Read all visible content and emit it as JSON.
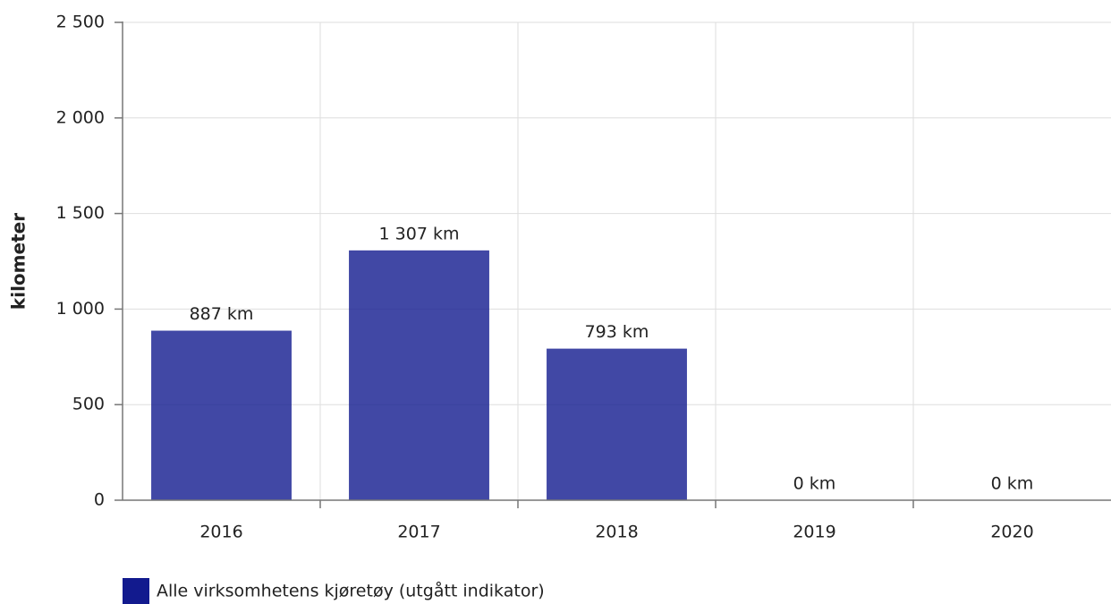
{
  "chart_data": {
    "type": "bar",
    "y_label": "kilometer",
    "categories": [
      "2016",
      "2017",
      "2018",
      "2019",
      "2020"
    ],
    "series": [
      {
        "name": "Alle virksomhetens kjøretøy (utgått indikator)",
        "color": "#121a8e",
        "values": [
          887,
          1307,
          793,
          0,
          0
        ],
        "value_labels": [
          "887 km",
          "1 307 km",
          "793 km",
          "0 km",
          "0 km"
        ]
      }
    ],
    "ylim": [
      0,
      2500
    ],
    "yticks": [
      0,
      500,
      {
        "value": 1000,
        "label": "1 000"
      },
      {
        "value": 1500,
        "label": "1 500"
      },
      {
        "value": 2000,
        "label": "2 000"
      },
      {
        "value": 2500,
        "label": "2 500"
      }
    ],
    "grid": true
  }
}
